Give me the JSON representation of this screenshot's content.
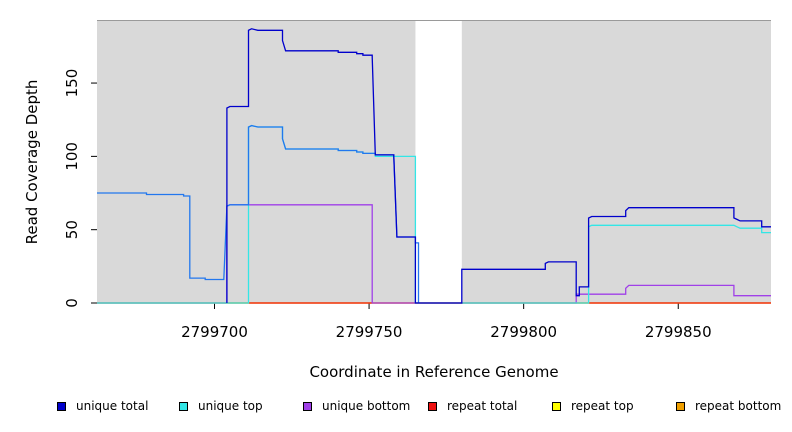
{
  "chart_data": {
    "type": "line",
    "title": "",
    "xlabel": "Coordinate in Reference Genome",
    "ylabel": "Read Coverage Depth",
    "xlim": [
      2799662,
      2799880
    ],
    "ylim": [
      0,
      193
    ],
    "x_ticks": [
      2799700,
      2799750,
      2799800,
      2799850
    ],
    "y_ticks": [
      0,
      50,
      100,
      150
    ],
    "background_color": "#d9d9d9",
    "unshaded_regions": [
      [
        2799765,
        2799780
      ]
    ],
    "grid": false,
    "legend_position": "bottom",
    "series": [
      {
        "name": "unique total",
        "color": "#0000cc",
        "points": [
          [
            2799704,
            0
          ],
          [
            2799704,
            133
          ],
          [
            2799705,
            134
          ],
          [
            2799711,
            134
          ],
          [
            2799711,
            186
          ],
          [
            2799712,
            187
          ],
          [
            2799714,
            186
          ],
          [
            2799722,
            186
          ],
          [
            2799722,
            179
          ],
          [
            2799723,
            172
          ],
          [
            2799740,
            172
          ],
          [
            2799740,
            171
          ],
          [
            2799746,
            171
          ],
          [
            2799746,
            170
          ],
          [
            2799748,
            170
          ],
          [
            2799748,
            169
          ],
          [
            2799751,
            169
          ],
          [
            2799751,
            168
          ],
          [
            2799752,
            101
          ],
          [
            2799758,
            101
          ],
          [
            2799758,
            100
          ],
          [
            2799759,
            45
          ],
          [
            2799765,
            45
          ],
          [
            2799765,
            0
          ],
          [
            2799780,
            0
          ],
          [
            2799780,
            23
          ],
          [
            2799807,
            23
          ],
          [
            2799807,
            27
          ],
          [
            2799808,
            28
          ],
          [
            2799817,
            28
          ],
          [
            2799817,
            5
          ],
          [
            2799818,
            5
          ],
          [
            2799818,
            11
          ],
          [
            2799821,
            11
          ],
          [
            2799821,
            58
          ],
          [
            2799822,
            59
          ],
          [
            2799833,
            59
          ],
          [
            2799833,
            63
          ],
          [
            2799834,
            65
          ],
          [
            2799868,
            65
          ],
          [
            2799868,
            58
          ],
          [
            2799869,
            57
          ],
          [
            2799870,
            56
          ],
          [
            2799877,
            56
          ],
          [
            2799877,
            52
          ],
          [
            2799880,
            52
          ]
        ]
      },
      {
        "name": "unique top",
        "color": "#33e6e6",
        "points": [
          [
            2799662,
            0
          ],
          [
            2799711,
            0
          ],
          [
            2799711,
            120
          ],
          [
            2799712,
            121
          ],
          [
            2799714,
            120
          ],
          [
            2799722,
            120
          ],
          [
            2799722,
            112
          ],
          [
            2799723,
            105
          ],
          [
            2799740,
            105
          ],
          [
            2799740,
            104
          ],
          [
            2799746,
            104
          ],
          [
            2799746,
            103
          ],
          [
            2799748,
            103
          ],
          [
            2799748,
            102
          ],
          [
            2799752,
            102
          ],
          [
            2799752,
            100
          ],
          [
            2799758,
            100
          ],
          [
            2799765,
            100
          ],
          [
            2799765,
            0
          ],
          [
            2799821,
            0
          ],
          [
            2799821,
            52
          ],
          [
            2799822,
            53
          ],
          [
            2799868,
            53
          ],
          [
            2799869,
            52
          ],
          [
            2799870,
            51
          ],
          [
            2799877,
            51
          ],
          [
            2799877,
            48
          ],
          [
            2799880,
            48
          ]
        ]
      },
      {
        "name": "unique bottom",
        "color": "#a040e8",
        "points": [
          [
            2799662,
            0
          ],
          [
            2799704,
            0
          ],
          [
            2799704,
            66
          ],
          [
            2799705,
            67
          ],
          [
            2799751,
            67
          ],
          [
            2799751,
            0
          ],
          [
            2799817,
            0
          ],
          [
            2799817,
            6
          ],
          [
            2799833,
            6
          ],
          [
            2799833,
            10
          ],
          [
            2799834,
            12
          ],
          [
            2799868,
            12
          ],
          [
            2799868,
            5
          ],
          [
            2799880,
            5
          ]
        ]
      },
      {
        "name": "repeat total",
        "color": "#ee1111",
        "points": [
          [
            2799662,
            0
          ],
          [
            2799880,
            0
          ]
        ]
      },
      {
        "name": "repeat top",
        "color": "#ffff00",
        "points": [
          [
            2799662,
            0
          ],
          [
            2799880,
            0
          ]
        ]
      },
      {
        "name": "repeat bottom",
        "color": "#f0a000",
        "points": [
          [
            2799662,
            0
          ],
          [
            2799880,
            0
          ]
        ]
      },
      {
        "name": "",
        "color": "#2277ee",
        "points": [
          [
            2799662,
            75
          ],
          [
            2799678,
            75
          ],
          [
            2799678,
            74
          ],
          [
            2799690,
            74
          ],
          [
            2799690,
            73
          ],
          [
            2799692,
            73
          ],
          [
            2799692,
            17
          ],
          [
            2799697,
            17
          ],
          [
            2799697,
            16
          ],
          [
            2799703,
            16
          ],
          [
            2799704,
            66
          ],
          [
            2799705,
            67
          ],
          [
            2799711,
            67
          ],
          [
            2799711,
            120
          ],
          [
            2799712,
            121
          ],
          [
            2799714,
            120
          ],
          [
            2799722,
            120
          ],
          [
            2799722,
            112
          ],
          [
            2799723,
            105
          ],
          [
            2799740,
            105
          ],
          [
            2799740,
            104
          ],
          [
            2799746,
            104
          ],
          [
            2799746,
            103
          ],
          [
            2799748,
            103
          ],
          [
            2799748,
            102
          ],
          [
            2799752,
            102
          ],
          [
            2799752,
            101
          ],
          [
            2799758,
            101
          ],
          [
            2799758,
            100
          ],
          [
            2799759,
            45
          ],
          [
            2799765,
            45
          ],
          [
            2799765,
            41
          ],
          [
            2799766,
            41
          ],
          [
            2799766,
            0
          ]
        ]
      }
    ]
  },
  "legend": [
    {
      "label": "unique total",
      "color": "#0000cc"
    },
    {
      "label": "unique top",
      "color": "#33e6e6"
    },
    {
      "label": "unique bottom",
      "color": "#a040e8"
    },
    {
      "label": "repeat total",
      "color": "#ee1111"
    },
    {
      "label": "repeat top",
      "color": "#ffff00"
    },
    {
      "label": "repeat bottom",
      "color": "#f0a000"
    }
  ]
}
